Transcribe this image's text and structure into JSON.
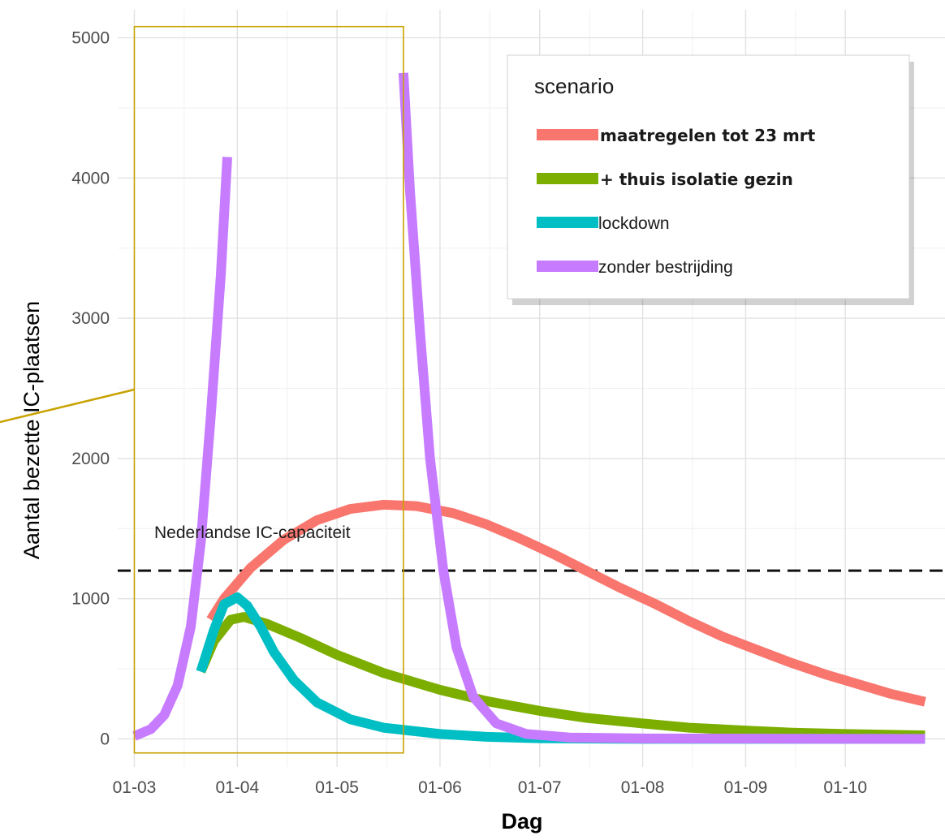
{
  "chart_data": {
    "type": "line",
    "xlabel": "Dag",
    "ylabel": "Aantal bezette IC-plaatsen",
    "x_ticks": [
      "01-03",
      "01-04",
      "01-05",
      "01-06",
      "01-07",
      "01-08",
      "01-09",
      "01-10"
    ],
    "y_ticks": [
      0,
      1000,
      2000,
      3000,
      4000,
      5000
    ],
    "xlim": [
      "2020-02-25",
      "2020-10-31"
    ],
    "ylim": [
      -200,
      5200
    ],
    "grid": true,
    "legend": {
      "title": "scenario",
      "placement": "top-right",
      "items": [
        {
          "label": "maatregelen tot 23 mrt",
          "color": "#f8766d",
          "bold": true
        },
        {
          "label": "+ thuis isolatie gezin",
          "color": "#7cae00",
          "bold": true
        },
        {
          "label": "lockdown",
          "color": "#00bfc4",
          "bold": false
        },
        {
          "label": "zonder bestrijding",
          "color": "#c77cff",
          "bold": false
        }
      ]
    },
    "reference_line": {
      "label": "Nederlandse IC-capaciteit",
      "y": 1200,
      "style": "dashed"
    },
    "highlight_box": {
      "x": [
        "2020-03-01",
        "2020-05-21"
      ],
      "y": [
        -100,
        5080
      ],
      "color": "#c8a200"
    },
    "series": [
      {
        "name": "maatregelen tot 23 mrt",
        "color": "#f8766d",
        "points": [
          [
            "2020-03-24",
            850
          ],
          [
            "2020-03-28",
            1000
          ],
          [
            "2020-04-05",
            1220
          ],
          [
            "2020-04-15",
            1420
          ],
          [
            "2020-04-25",
            1560
          ],
          [
            "2020-05-05",
            1640
          ],
          [
            "2020-05-15",
            1670
          ],
          [
            "2020-05-25",
            1660
          ],
          [
            "2020-06-05",
            1610
          ],
          [
            "2020-06-15",
            1530
          ],
          [
            "2020-06-25",
            1430
          ],
          [
            "2020-07-05",
            1320
          ],
          [
            "2020-07-15",
            1200
          ],
          [
            "2020-07-25",
            1080
          ],
          [
            "2020-08-05",
            960
          ],
          [
            "2020-08-15",
            840
          ],
          [
            "2020-08-25",
            730
          ],
          [
            "2020-09-05",
            630
          ],
          [
            "2020-09-15",
            540
          ],
          [
            "2020-09-25",
            460
          ],
          [
            "2020-10-05",
            390
          ],
          [
            "2020-10-15",
            320
          ],
          [
            "2020-10-25",
            265
          ]
        ]
      },
      {
        "name": "+ thuis isolatie gezin",
        "color": "#7cae00",
        "points": [
          [
            "2020-03-21",
            480
          ],
          [
            "2020-03-25",
            700
          ],
          [
            "2020-03-30",
            850
          ],
          [
            "2020-04-03",
            870
          ],
          [
            "2020-04-10",
            820
          ],
          [
            "2020-04-20",
            720
          ],
          [
            "2020-05-01",
            600
          ],
          [
            "2020-05-15",
            470
          ],
          [
            "2020-06-01",
            350
          ],
          [
            "2020-06-15",
            270
          ],
          [
            "2020-07-01",
            200
          ],
          [
            "2020-07-15",
            150
          ],
          [
            "2020-08-01",
            110
          ],
          [
            "2020-08-15",
            80
          ],
          [
            "2020-09-01",
            60
          ],
          [
            "2020-09-15",
            45
          ],
          [
            "2020-10-01",
            35
          ],
          [
            "2020-10-25",
            25
          ]
        ]
      },
      {
        "name": "lockdown",
        "color": "#00bfc4",
        "points": [
          [
            "2020-03-21",
            480
          ],
          [
            "2020-03-25",
            780
          ],
          [
            "2020-03-28",
            960
          ],
          [
            "2020-04-01",
            1010
          ],
          [
            "2020-04-04",
            950
          ],
          [
            "2020-04-08",
            800
          ],
          [
            "2020-04-12",
            620
          ],
          [
            "2020-04-18",
            420
          ],
          [
            "2020-04-25",
            260
          ],
          [
            "2020-05-05",
            140
          ],
          [
            "2020-05-15",
            80
          ],
          [
            "2020-06-01",
            35
          ],
          [
            "2020-06-15",
            15
          ],
          [
            "2020-07-01",
            5
          ],
          [
            "2020-08-01",
            0
          ],
          [
            "2020-10-25",
            0
          ]
        ]
      },
      {
        "name": "zonder bestrijding",
        "color": "#c77cff",
        "segments": [
          [
            [
              "2020-03-01",
              20
            ],
            [
              "2020-03-06",
              70
            ],
            [
              "2020-03-10",
              170
            ],
            [
              "2020-03-14",
              380
            ],
            [
              "2020-03-18",
              800
            ],
            [
              "2020-03-21",
              1400
            ],
            [
              "2020-03-24",
              2300
            ],
            [
              "2020-03-27",
              3300
            ],
            [
              "2020-03-29",
              4150
            ]
          ],
          [
            [
              "2020-05-21",
              4750
            ],
            [
              "2020-05-23",
              3900
            ],
            [
              "2020-05-26",
              2900
            ],
            [
              "2020-05-29",
              2000
            ],
            [
              "2020-06-02",
              1200
            ],
            [
              "2020-06-06",
              650
            ],
            [
              "2020-06-11",
              300
            ],
            [
              "2020-06-18",
              110
            ],
            [
              "2020-06-27",
              35
            ],
            [
              "2020-07-10",
              10
            ],
            [
              "2020-08-01",
              3
            ],
            [
              "2020-10-25",
              0
            ]
          ]
        ]
      }
    ]
  }
}
